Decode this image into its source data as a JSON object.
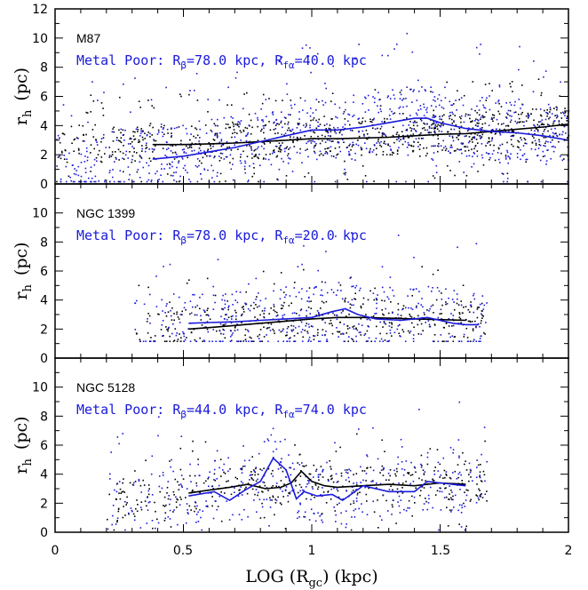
{
  "figure": {
    "xlabel_main": "LOG (R",
    "xlabel_sub": "gc",
    "xlabel_tail": ") (kpc)",
    "ylabel_main": "r",
    "ylabel_sub": "h",
    "ylabel_tail": "(pc)",
    "xticks": [
      "0",
      "0.5",
      "1",
      "1.5",
      "2"
    ],
    "yticks": [
      "0",
      "2",
      "4",
      "6",
      "8",
      "10",
      "12"
    ],
    "colors": {
      "metal_poor": "#1a1adb",
      "metal_rich": "#000000",
      "axes": "#000000"
    }
  },
  "chart_data": [
    {
      "type": "scatter",
      "galaxy": "M87",
      "xlim": [
        0,
        2
      ],
      "ylim": [
        0,
        12
      ],
      "annotation": {
        "prefix": "Metal Poor: R",
        "beta": "β",
        "mid": "=78.0 kpc, R",
        "fa": "fα",
        "tail": "=40.0 kpc"
      },
      "series": [
        {
          "color": "#000000",
          "x": [
            0.38,
            0.5,
            0.6,
            0.7,
            0.8,
            0.9,
            1.0,
            1.1,
            1.2,
            1.3,
            1.4,
            1.5,
            1.6,
            1.7,
            1.8,
            1.9,
            2.0
          ],
          "y": [
            2.7,
            2.7,
            2.75,
            2.8,
            2.9,
            3.0,
            3.1,
            3.1,
            3.15,
            3.2,
            3.3,
            3.4,
            3.45,
            3.6,
            3.75,
            3.9,
            4.1
          ]
        },
        {
          "color": "#1a1adb",
          "x": [
            0.38,
            0.5,
            0.6,
            0.7,
            0.8,
            0.9,
            1.0,
            1.1,
            1.2,
            1.3,
            1.4,
            1.45,
            1.5,
            1.6,
            1.7,
            1.8,
            1.9,
            2.0
          ],
          "y": [
            1.7,
            1.9,
            2.2,
            2.5,
            2.9,
            3.3,
            3.7,
            3.7,
            3.9,
            4.2,
            4.5,
            4.5,
            4.2,
            3.8,
            3.6,
            3.5,
            3.3,
            3.0
          ]
        }
      ],
      "scatter_domain": {
        "x": [
          0.0,
          2.0
        ],
        "y": [
          0.2,
          11.8
        ]
      }
    },
    {
      "type": "scatter",
      "galaxy": "NGC 1399",
      "xlim": [
        0,
        2
      ],
      "ylim": [
        0,
        12
      ],
      "annotation": {
        "prefix": "Metal Poor: R",
        "beta": "β",
        "mid": "=78.0 kpc, R",
        "fa": "fα",
        "tail": "=20.0 kpc"
      },
      "series": [
        {
          "color": "#000000",
          "x": [
            0.52,
            0.6,
            0.7,
            0.8,
            0.9,
            1.0,
            1.1,
            1.2,
            1.3,
            1.4,
            1.5,
            1.6
          ],
          "y": [
            2.0,
            2.1,
            2.25,
            2.4,
            2.55,
            2.7,
            2.8,
            2.8,
            2.75,
            2.7,
            2.65,
            2.6
          ]
        },
        {
          "color": "#1a1adb",
          "x": [
            0.52,
            0.6,
            0.7,
            0.8,
            0.9,
            1.0,
            1.08,
            1.13,
            1.18,
            1.25,
            1.35,
            1.45,
            1.55,
            1.6,
            1.65
          ],
          "y": [
            2.4,
            2.45,
            2.5,
            2.6,
            2.7,
            2.8,
            3.2,
            3.4,
            3.0,
            2.7,
            2.6,
            2.8,
            2.4,
            2.3,
            2.3
          ]
        }
      ],
      "scatter_domain": {
        "x": [
          0.3,
          1.68
        ],
        "y": [
          1.2,
          9.0
        ]
      }
    },
    {
      "type": "scatter",
      "galaxy": "NGC 5128",
      "xlim": [
        0,
        2
      ],
      "ylim": [
        0,
        12
      ],
      "annotation": {
        "prefix": "Metal Poor: R",
        "beta": "β",
        "mid": "=44.0 kpc, R",
        "fa": "fα",
        "tail": "=74.0 kpc"
      },
      "series": [
        {
          "color": "#000000",
          "x": [
            0.52,
            0.6,
            0.68,
            0.75,
            0.82,
            0.88,
            0.92,
            0.96,
            1.0,
            1.05,
            1.1,
            1.2,
            1.3,
            1.4,
            1.5,
            1.6
          ],
          "y": [
            2.7,
            2.9,
            3.1,
            3.3,
            3.0,
            3.1,
            3.4,
            4.2,
            3.5,
            3.2,
            3.1,
            3.2,
            3.3,
            3.2,
            3.4,
            3.3
          ]
        },
        {
          "color": "#1a1adb",
          "x": [
            0.52,
            0.62,
            0.68,
            0.74,
            0.8,
            0.85,
            0.9,
            0.94,
            0.97,
            1.02,
            1.08,
            1.12,
            1.2,
            1.3,
            1.4,
            1.45,
            1.5,
            1.6
          ],
          "y": [
            2.5,
            2.8,
            2.2,
            2.9,
            3.5,
            5.1,
            4.3,
            2.3,
            2.8,
            2.5,
            2.6,
            2.2,
            3.2,
            2.8,
            2.8,
            3.5,
            3.4,
            3.2
          ]
        }
      ],
      "scatter_domain": {
        "x": [
          0.2,
          1.68
        ],
        "y": [
          0.2,
          9.5
        ]
      }
    }
  ]
}
